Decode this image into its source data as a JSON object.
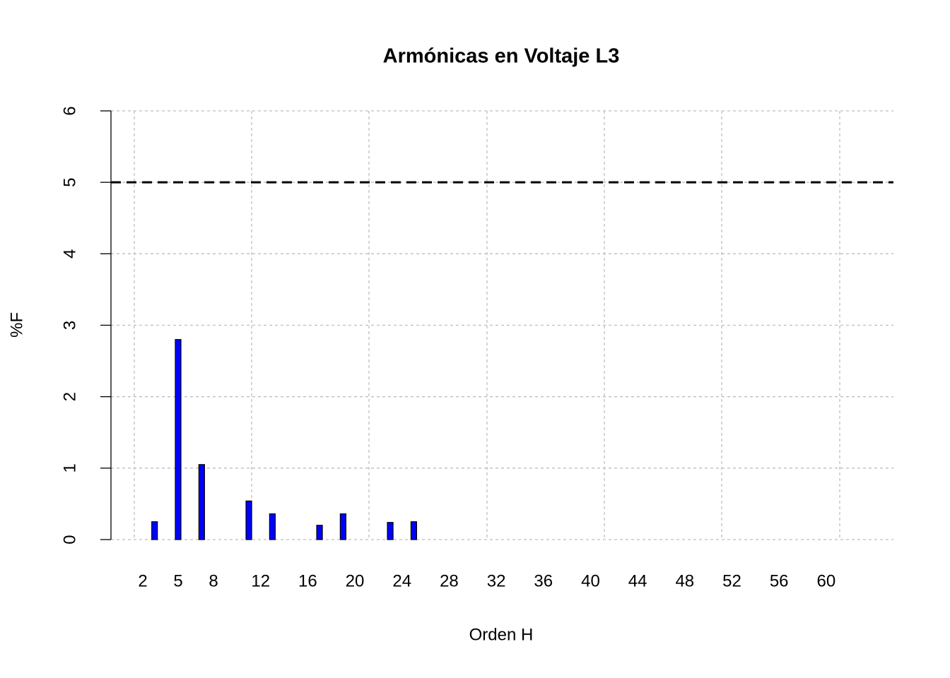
{
  "chart_data": {
    "type": "bar",
    "title": "Armónicas en Voltaje L3",
    "x_label": "Orden H",
    "y_label": "%F",
    "categories": [
      2,
      null,
      null,
      5,
      null,
      null,
      8,
      null,
      null,
      null,
      12,
      null,
      null,
      null,
      16,
      null,
      null,
      null,
      20,
      null,
      null,
      null,
      24,
      null,
      null,
      null,
      28,
      null,
      null,
      null,
      32,
      null,
      null,
      null,
      36,
      null,
      null,
      null,
      40,
      null,
      null,
      null,
      44,
      null,
      null,
      null,
      48,
      null,
      null,
      null,
      52,
      null,
      null,
      null,
      56,
      null,
      null,
      null,
      60,
      null,
      null,
      null
    ],
    "values": [
      0,
      0.25,
      0,
      2.8,
      0,
      1.05,
      0,
      0,
      0,
      0.54,
      0,
      0.36,
      0,
      0,
      0,
      0.2,
      0,
      0.36,
      0,
      0,
      0,
      0.24,
      0,
      0.25,
      0,
      0,
      0,
      0,
      0,
      0,
      0,
      0,
      0,
      0,
      0,
      0,
      0,
      0,
      0,
      0,
      0,
      0,
      0,
      0,
      0,
      0,
      0,
      0,
      0,
      0,
      0,
      0,
      0,
      0,
      0,
      0,
      0,
      0,
      0,
      0,
      0,
      0
    ],
    "color": "#0000ff",
    "ylim": [
      0,
      6
    ],
    "yticks": [
      0,
      1,
      2,
      3,
      4,
      5,
      6
    ],
    "grid": true,
    "hline": 5
  }
}
